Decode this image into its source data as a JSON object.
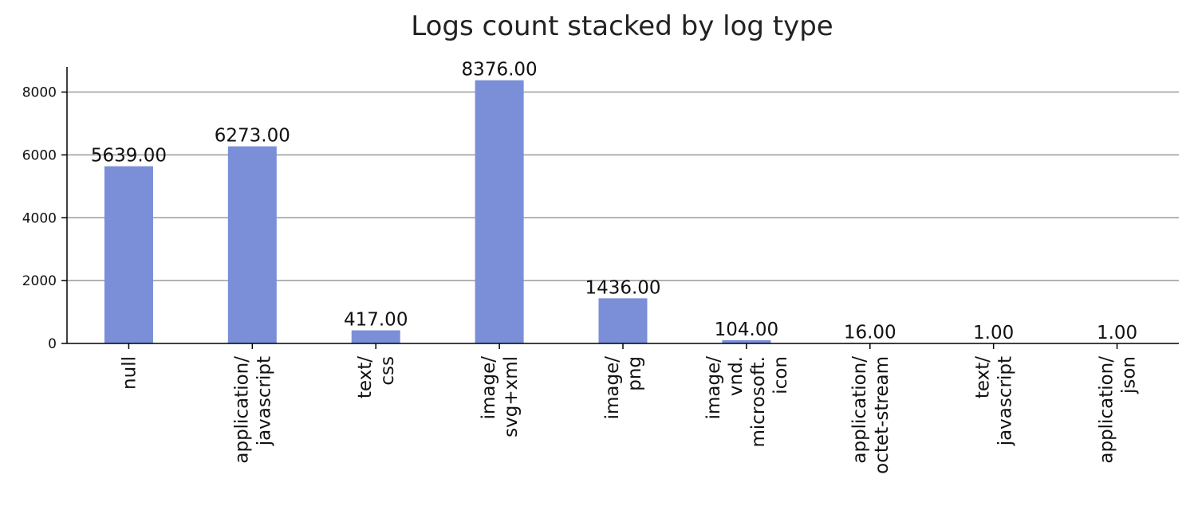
{
  "chart_data": {
    "type": "bar",
    "title": "Logs count stacked by log type",
    "xlabel": "",
    "ylabel": "",
    "categories": [
      [
        "null"
      ],
      [
        "application/",
        "javascript"
      ],
      [
        "text/",
        "css"
      ],
      [
        "image/",
        "svg+xml"
      ],
      [
        "image/",
        "png"
      ],
      [
        "image/",
        "vnd.",
        "microsoft.",
        "icon"
      ],
      [
        "application/",
        "octet-stream"
      ],
      [
        "text/",
        "javascript"
      ],
      [
        "application/",
        "json"
      ]
    ],
    "values": [
      5639,
      6273,
      417,
      8376,
      1436,
      104,
      16,
      1,
      1
    ],
    "value_labels": [
      "5639.00",
      "6273.00",
      "417.00",
      "8376.00",
      "1436.00",
      "104.00",
      "16.00",
      "1.00",
      "1.00"
    ],
    "y_ticks": [
      0,
      2000,
      4000,
      6000,
      8000
    ],
    "ylim": [
      0,
      8800
    ],
    "grid": "horizontal",
    "colors": {
      "bar": "#7a8fd8",
      "grid": "#999999",
      "axis": "#000000"
    }
  }
}
